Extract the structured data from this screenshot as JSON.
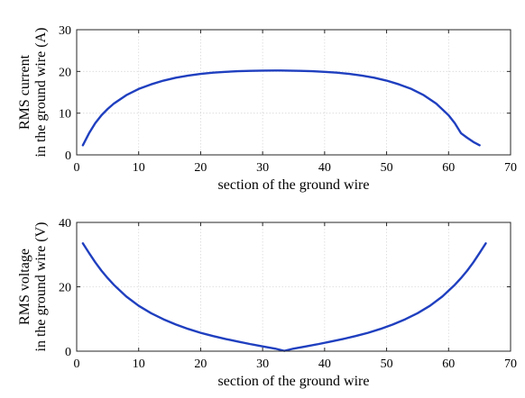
{
  "chart_data": [
    {
      "type": "line",
      "xlabel": "section of the ground wire",
      "ylabel_lines": [
        "RMS current",
        "in the ground wire (A)"
      ],
      "xlim": [
        0,
        70
      ],
      "ylim": [
        0,
        30
      ],
      "xticks": [
        0,
        10,
        20,
        30,
        40,
        50,
        60,
        70
      ],
      "yticks": [
        0,
        10,
        20,
        30
      ],
      "grid": true,
      "series": [
        {
          "color": "#1f3fbf",
          "x": [
            1,
            2,
            3,
            4,
            5,
            6,
            8,
            10,
            12,
            14,
            16,
            18,
            20,
            22,
            24,
            26,
            28,
            30,
            32,
            33,
            34,
            36,
            38,
            40,
            42,
            44,
            46,
            48,
            50,
            52,
            54,
            56,
            58,
            60,
            61,
            62,
            63,
            64,
            65
          ],
          "y": [
            2.3,
            5.2,
            7.6,
            9.5,
            11.0,
            12.3,
            14.3,
            15.8,
            16.9,
            17.8,
            18.5,
            19.0,
            19.4,
            19.7,
            19.9,
            20.05,
            20.15,
            20.2,
            20.22,
            20.22,
            20.2,
            20.15,
            20.05,
            19.9,
            19.7,
            19.4,
            19.0,
            18.5,
            17.8,
            16.9,
            15.8,
            14.3,
            12.3,
            9.5,
            7.6,
            5.2,
            4.1,
            3.1,
            2.3
          ]
        }
      ]
    },
    {
      "type": "line",
      "xlabel": "section of the ground wire",
      "ylabel_lines": [
        "RMS voltage",
        "in the ground wire (V)"
      ],
      "xlim": [
        0,
        70
      ],
      "ylim": [
        0,
        40
      ],
      "xticks": [
        0,
        10,
        20,
        30,
        40,
        50,
        60,
        70
      ],
      "yticks": [
        0,
        20,
        40
      ],
      "grid": true,
      "series": [
        {
          "color": "#1f3fbf",
          "x": [
            1,
            2,
            3,
            4,
            5,
            6,
            8,
            10,
            12,
            14,
            16,
            18,
            20,
            22,
            24,
            26,
            28,
            30,
            32,
            33.5,
            35,
            37,
            39,
            41,
            43,
            45,
            47,
            49,
            51,
            53,
            55,
            57,
            59,
            61,
            62,
            63,
            64,
            65,
            66
          ],
          "y": [
            33.5,
            30.5,
            27.6,
            25.0,
            22.7,
            20.6,
            17.0,
            14.1,
            11.8,
            9.9,
            8.3,
            6.9,
            5.7,
            4.7,
            3.8,
            3.0,
            2.2,
            1.5,
            0.8,
            0.1,
            0.8,
            1.5,
            2.2,
            3.0,
            3.8,
            4.7,
            5.7,
            6.9,
            8.3,
            9.9,
            11.8,
            14.1,
            17.0,
            20.6,
            22.7,
            25.0,
            27.6,
            30.5,
            33.5
          ]
        }
      ]
    }
  ]
}
